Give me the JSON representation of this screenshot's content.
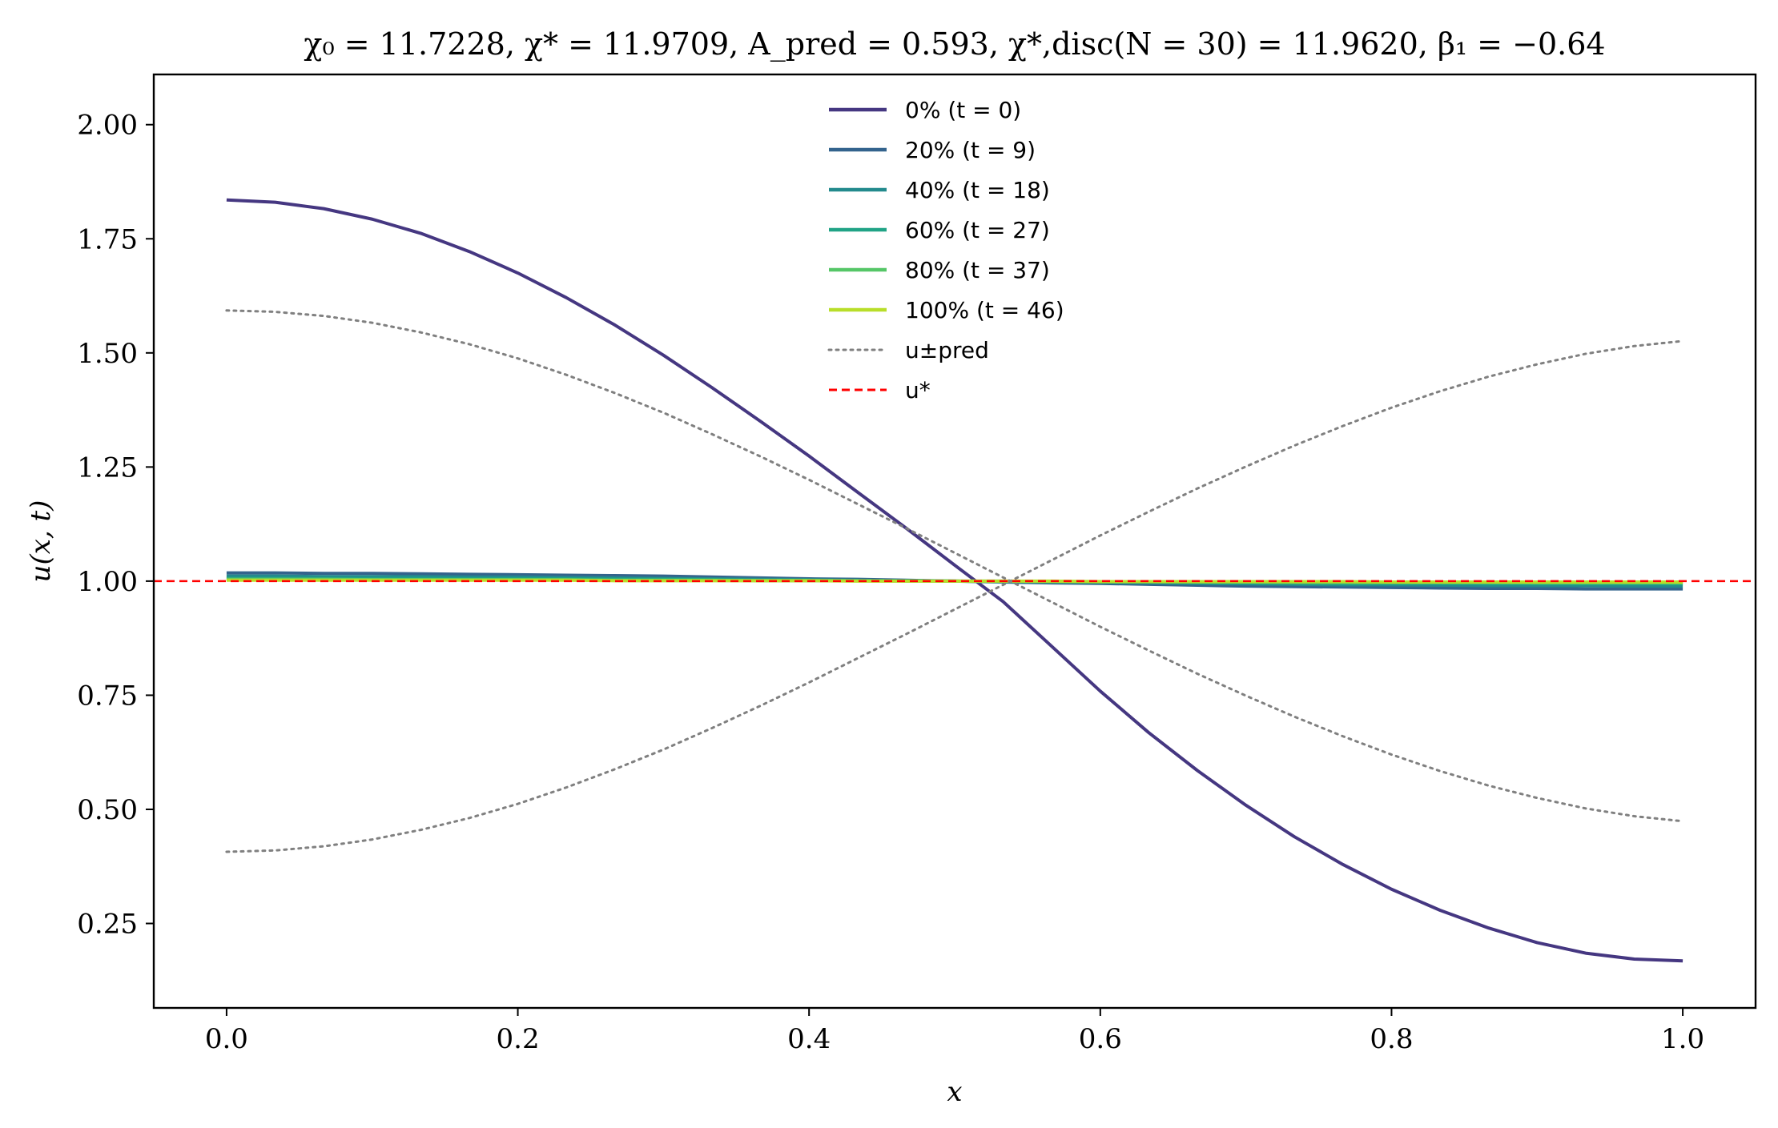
{
  "chart_data": {
    "type": "line",
    "title": "χ₀ = 11.7228,  χ* = 11.9709,  A_pred = 0.593,  χ*,disc(N = 30) = 11.9620,  β₁ = −0.64",
    "xlabel": "x",
    "ylabel": "u(x, t)",
    "xlim": [
      -0.05,
      1.05
    ],
    "ylim": [
      0.065,
      2.11
    ],
    "xticks": [
      0.0,
      0.2,
      0.4,
      0.6,
      0.8,
      1.0
    ],
    "xtick_labels": [
      "0.0",
      "0.2",
      "0.4",
      "0.6",
      "0.8",
      "1.0"
    ],
    "yticks": [
      0.25,
      0.5,
      0.75,
      1.0,
      1.25,
      1.5,
      1.75,
      2.0
    ],
    "ytick_labels": [
      "0.25",
      "0.50",
      "0.75",
      "1.00",
      "1.25",
      "1.50",
      "1.75",
      "2.00"
    ],
    "grid": false,
    "legend_position": "top-center",
    "x": [
      0.0,
      0.0333,
      0.0667,
      0.1,
      0.1333,
      0.1667,
      0.2,
      0.2333,
      0.2667,
      0.3,
      0.3333,
      0.3667,
      0.4,
      0.4333,
      0.4667,
      0.5,
      0.5333,
      0.5667,
      0.6,
      0.6333,
      0.6667,
      0.7,
      0.7333,
      0.7667,
      0.8,
      0.8333,
      0.8667,
      0.9,
      0.9333,
      0.9667,
      1.0
    ],
    "series": [
      {
        "name": "0% (t = 0)",
        "color": "#453781",
        "style": "solid",
        "values": [
          1.835,
          1.83,
          1.816,
          1.793,
          1.762,
          1.722,
          1.675,
          1.621,
          1.561,
          1.495,
          1.424,
          1.35,
          1.274,
          1.195,
          1.116,
          1.035,
          0.955,
          0.857,
          0.759,
          0.668,
          0.585,
          0.509,
          0.44,
          0.379,
          0.325,
          0.279,
          0.24,
          0.208,
          0.185,
          0.172,
          0.168
        ]
      },
      {
        "name": "20% (t = 9)",
        "color": "#33638d",
        "style": "solid",
        "values": [
          1.018,
          1.018,
          1.017,
          1.017,
          1.016,
          1.015,
          1.014,
          1.013,
          1.012,
          1.011,
          1.009,
          1.007,
          1.005,
          1.004,
          1.002,
          1.0,
          0.998,
          0.996,
          0.995,
          0.993,
          0.991,
          0.989,
          0.988,
          0.987,
          0.986,
          0.985,
          0.984,
          0.984,
          0.983,
          0.983,
          0.983
        ]
      },
      {
        "name": "40% (t = 18)",
        "color": "#238a8d",
        "style": "solid",
        "values": [
          1.011,
          1.011,
          1.01,
          1.01,
          1.01,
          1.009,
          1.009,
          1.008,
          1.007,
          1.006,
          1.005,
          1.004,
          1.003,
          1.002,
          1.001,
          1.0,
          0.999,
          0.998,
          0.997,
          0.996,
          0.995,
          0.994,
          0.993,
          0.992,
          0.992,
          0.991,
          0.99,
          0.99,
          0.99,
          0.989,
          0.989
        ]
      },
      {
        "name": "60% (t = 27)",
        "color": "#20a386",
        "style": "solid",
        "values": [
          1.006,
          1.006,
          1.006,
          1.006,
          1.006,
          1.005,
          1.005,
          1.005,
          1.004,
          1.004,
          1.003,
          1.002,
          1.002,
          1.001,
          1.001,
          1.0,
          0.999,
          0.999,
          0.998,
          0.998,
          0.997,
          0.996,
          0.996,
          0.995,
          0.995,
          0.995,
          0.994,
          0.994,
          0.994,
          0.994,
          0.994
        ]
      },
      {
        "name": "80% (t = 37)",
        "color": "#55c667",
        "style": "solid",
        "values": [
          1.004,
          1.004,
          1.004,
          1.003,
          1.003,
          1.003,
          1.003,
          1.003,
          1.002,
          1.002,
          1.002,
          1.001,
          1.001,
          1.001,
          1.0,
          1.0,
          1.0,
          0.999,
          0.999,
          0.999,
          0.998,
          0.998,
          0.997,
          0.997,
          0.997,
          0.997,
          0.997,
          0.996,
          0.996,
          0.996,
          0.996
        ]
      },
      {
        "name": "100% (t = 46)",
        "color": "#b8de29",
        "style": "solid",
        "values": [
          1.002,
          1.002,
          1.002,
          1.002,
          1.002,
          1.002,
          1.002,
          1.002,
          1.001,
          1.001,
          1.001,
          1.001,
          1.001,
          1.0,
          1.0,
          1.0,
          1.0,
          1.0,
          0.999,
          0.999,
          0.999,
          0.999,
          0.999,
          0.999,
          0.998,
          0.998,
          0.998,
          0.998,
          0.998,
          0.998,
          0.998
        ]
      },
      {
        "name": "u±_pred",
        "color": "#808080",
        "style": "dotted",
        "values": [
          1.593,
          1.59,
          1.581,
          1.566,
          1.545,
          1.519,
          1.488,
          1.452,
          1.412,
          1.369,
          1.322,
          1.273,
          1.222,
          1.169,
          1.116,
          1.062,
          1.008,
          0.954,
          0.9,
          0.848,
          0.797,
          0.749,
          0.703,
          0.66,
          0.62,
          0.584,
          0.552,
          0.525,
          0.502,
          0.485,
          0.474
        ],
        "values_b": [
          0.407,
          0.41,
          0.419,
          0.434,
          0.455,
          0.481,
          0.512,
          0.548,
          0.588,
          0.631,
          0.678,
          0.727,
          0.778,
          0.831,
          0.884,
          0.938,
          0.992,
          1.046,
          1.1,
          1.152,
          1.203,
          1.251,
          1.297,
          1.34,
          1.38,
          1.416,
          1.448,
          1.475,
          1.498,
          1.515,
          1.526
        ]
      },
      {
        "name": "u*",
        "color": "#ff0000",
        "style": "dashed",
        "hline": 1.0
      }
    ]
  },
  "legend": [
    {
      "label": "0% (t = 0)",
      "color": "#453781",
      "style": "solid"
    },
    {
      "label": "20% (t = 9)",
      "color": "#33638d",
      "style": "solid"
    },
    {
      "label": "40% (t = 18)",
      "color": "#238a8d",
      "style": "solid"
    },
    {
      "label": "60% (t = 27)",
      "color": "#20a386",
      "style": "solid"
    },
    {
      "label": "80% (t = 37)",
      "color": "#55c667",
      "style": "solid"
    },
    {
      "label": "100% (t = 46)",
      "color": "#b8de29",
      "style": "solid"
    },
    {
      "label": "u±pred",
      "color": "#808080",
      "style": "dotted"
    },
    {
      "label": "u*",
      "color": "#ff0000",
      "style": "dashed"
    }
  ]
}
